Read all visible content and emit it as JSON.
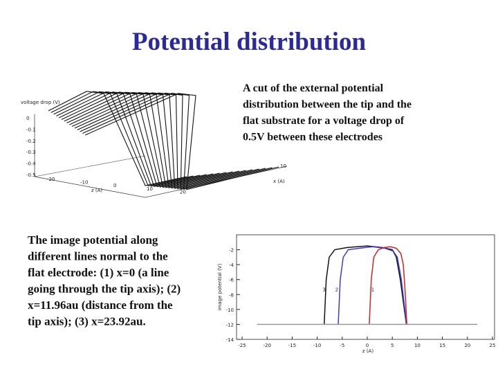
{
  "header": {
    "title": "Potential distribution"
  },
  "top_caption": {
    "lines": [
      "A cut of the external potential",
      "distribution between the tip and the",
      "flat substrate for a voltage drop of",
      "0.5V between these electrodes"
    ]
  },
  "bottom_caption": {
    "lines": [
      "The image potential along",
      "different lines normal to the",
      "flat electrode: (1) x=0 (a line",
      "going through the tip axis); (2)",
      "x=11.96au (distance from the",
      "tip axis); (3) x=23.92au."
    ]
  },
  "surface_plot": {
    "z_label": "voltage drop (V)",
    "x_label": "x (A)",
    "y_label": "z (A)",
    "zticks": [
      0,
      -0.1,
      -0.2,
      -0.3,
      -0.4,
      -0.5
    ],
    "yticks": [
      -20,
      -10,
      0,
      10,
      20
    ],
    "xticks": [
      10
    ]
  },
  "line_plot": {
    "ylabel": "image potential (V)",
    "xlabel": "z (A)",
    "xlim": [
      -25,
      25
    ],
    "ylim": [
      -14,
      0
    ],
    "xticks": [
      -25,
      -20,
      -15,
      -10,
      -5,
      0,
      5,
      10,
      15,
      20,
      25
    ],
    "yticks": [
      -2,
      -4,
      -6,
      -8,
      -10,
      -12,
      -14
    ],
    "series": [
      {
        "name": "3",
        "color": "#111111",
        "label_at": [
          -8.6,
          -7.3
        ],
        "x": [
          -8.6,
          -8.2,
          -7.6,
          -6.5,
          -4,
          0,
          3,
          5,
          5.8,
          6.6,
          7.4,
          7.8
        ],
        "y": [
          -12,
          -6,
          -3,
          -2,
          -1.7,
          -1.5,
          -1.7,
          -2,
          -3,
          -6,
          -10,
          -12
        ]
      },
      {
        "name": "2",
        "color": "#3a3adc",
        "label_at": [
          -6.1,
          -7.3
        ],
        "x": [
          -5.8,
          -5.4,
          -4.8,
          -3.8,
          -1.5,
          1,
          3.5,
          5.2,
          6,
          6.8,
          7.5,
          7.8
        ],
        "y": [
          -12,
          -6,
          -3,
          -2,
          -1.8,
          -1.6,
          -1.8,
          -2.2,
          -3,
          -6,
          -10,
          -12
        ]
      },
      {
        "name": "1",
        "color": "#d42020",
        "label_at": [
          1.1,
          -7.3
        ],
        "x": [
          0.4,
          0.8,
          1.3,
          2.2,
          3.4,
          4.6,
          5.8,
          6.7,
          7.2,
          7.6,
          7.9
        ],
        "y": [
          -12,
          -6,
          -3,
          -2,
          -1.7,
          -1.6,
          -1.8,
          -2.5,
          -4,
          -8,
          -12
        ]
      },
      {
        "name": "",
        "color": "#999999",
        "x": [
          -22,
          22
        ],
        "y": [
          -12,
          -12
        ]
      }
    ]
  }
}
